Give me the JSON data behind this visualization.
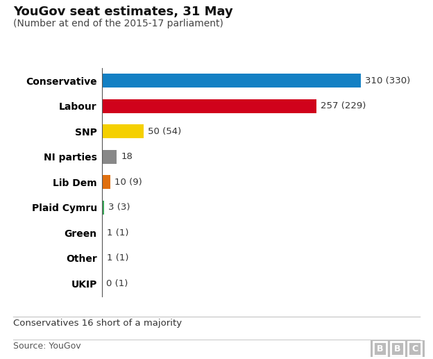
{
  "title": "YouGov seat estimates, 31 May",
  "subtitle": "(Number at end of the 2015-17 parliament)",
  "parties": [
    "Conservative",
    "Labour",
    "SNP",
    "NI parties",
    "Lib Dem",
    "Plaid Cymru",
    "Green",
    "Other",
    "UKIP"
  ],
  "values": [
    310,
    257,
    50,
    18,
    10,
    3,
    1,
    1,
    0
  ],
  "labels": [
    "310 (330)",
    "257 (229)",
    "50 (54)",
    "18",
    "10 (9)",
    "3 (3)",
    "1 (1)",
    "1 (1)",
    "0 (1)"
  ],
  "colors": [
    "#1380c4",
    "#d0021b",
    "#f5d000",
    "#888888",
    "#e07010",
    "#3aaa5a",
    "#3aaa5a",
    "#888888",
    "#aaaaaa"
  ],
  "footer_note": "Conservatives 16 short of a majority",
  "source": "Source: YouGov",
  "xlim": [
    0,
    360
  ],
  "background_color": "#ffffff",
  "bar_height": 0.55,
  "title_fontsize": 13,
  "subtitle_fontsize": 10,
  "label_fontsize": 9.5,
  "tick_fontsize": 10,
  "footer_fontsize": 9.5
}
